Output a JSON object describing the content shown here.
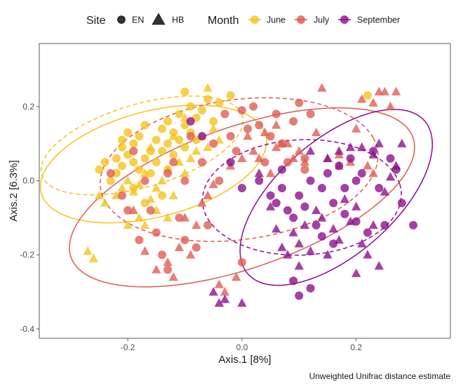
{
  "chart_data": {
    "type": "scatter",
    "title": "",
    "xlabel": "Axis.1   [8%]",
    "ylabel": "Axis.2   [6.3%]",
    "caption": "Unweighted Unifrac distance estimate",
    "xlim": [
      -0.355,
      0.365
    ],
    "ylim": [
      -0.425,
      0.37
    ],
    "x_ticks": [
      -0.2,
      0.0,
      0.2
    ],
    "x_tick_labels": [
      "-0.2",
      "0.0",
      "0.2"
    ],
    "y_ticks": [
      -0.4,
      -0.2,
      0.0,
      0.2
    ],
    "y_tick_labels": [
      "-0.4",
      "-0.2",
      "0.0",
      "0.2"
    ],
    "grid": false,
    "legend_position": "top",
    "legend": {
      "site_title": "Site",
      "site_entries": [
        {
          "label": "EN",
          "shape": "circle"
        },
        {
          "label": "HB",
          "shape": "triangle"
        }
      ],
      "month_title": "Month",
      "month_entries": [
        {
          "label": "June",
          "color": "#F5C21B"
        },
        {
          "label": "July",
          "color": "#E0584F"
        },
        {
          "label": "September",
          "color": "#8C0A8C"
        }
      ]
    },
    "colors": {
      "June": "#F5C21B",
      "July": "#E0584F",
      "September": "#8C0A8C"
    },
    "ellipses": [
      {
        "month": "June",
        "site": "EN",
        "style": "dashed",
        "cx": -0.175,
        "cy": 0.095,
        "rx": 0.195,
        "ry": 0.105,
        "angle_deg": 30
      },
      {
        "month": "June",
        "site": "HB",
        "style": "solid",
        "cx": -0.155,
        "cy": 0.045,
        "rx": 0.215,
        "ry": 0.135,
        "angle_deg": 30
      },
      {
        "month": "July",
        "site": "EN",
        "style": "dashed",
        "cx": -0.005,
        "cy": 0.03,
        "rx": 0.25,
        "ry": 0.185,
        "angle_deg": 20
      },
      {
        "month": "July",
        "site": "HB",
        "style": "solid",
        "cx": 0.0,
        "cy": -0.045,
        "rx": 0.345,
        "ry": 0.175,
        "angle_deg": 34
      },
      {
        "month": "September",
        "site": "EN",
        "style": "dashed",
        "cx": 0.105,
        "cy": -0.045,
        "rx": 0.175,
        "ry": 0.155,
        "angle_deg": 12
      },
      {
        "month": "September",
        "site": "HB",
        "style": "solid",
        "cx": 0.165,
        "cy": -0.045,
        "rx": 0.265,
        "ry": 0.12,
        "angle_deg": 60
      }
    ],
    "series": [
      {
        "month": "June",
        "site": "EN",
        "points": [
          [
            -0.25,
            0.03
          ],
          [
            -0.24,
            0.05
          ],
          [
            -0.22,
            0.06
          ],
          [
            -0.21,
            0.09
          ],
          [
            -0.2,
            0.07
          ],
          [
            -0.19,
            0.1
          ],
          [
            -0.18,
            0.12
          ],
          [
            -0.17,
            0.15
          ],
          [
            -0.16,
            0.08
          ],
          [
            -0.15,
            0.11
          ],
          [
            -0.14,
            0.14
          ],
          [
            -0.13,
            0.16
          ],
          [
            -0.12,
            0.13
          ],
          [
            -0.11,
            0.18
          ],
          [
            -0.1,
            0.15
          ],
          [
            -0.09,
            0.2
          ],
          [
            -0.08,
            0.17
          ],
          [
            -0.07,
            0.19
          ],
          [
            -0.06,
            0.22
          ],
          [
            -0.05,
            0.16
          ],
          [
            -0.04,
            0.21
          ],
          [
            -0.22,
            0.02
          ],
          [
            -0.23,
            0.0
          ],
          [
            -0.21,
            0.04
          ],
          [
            -0.19,
            0.05
          ],
          [
            -0.18,
            0.03
          ],
          [
            -0.17,
            0.06
          ],
          [
            -0.16,
            0.02
          ],
          [
            -0.15,
            0.05
          ],
          [
            -0.14,
            0.08
          ],
          [
            -0.13,
            0.1
          ],
          [
            -0.12,
            0.07
          ],
          [
            -0.11,
            0.11
          ],
          [
            -0.1,
            0.09
          ],
          [
            -0.09,
            0.13
          ],
          [
            -0.08,
            0.11
          ],
          [
            -0.2,
            0.13
          ],
          [
            -0.19,
            -0.02
          ],
          [
            -0.17,
            -0.06
          ],
          [
            -0.14,
            -0.04
          ],
          [
            -0.1,
            0.24
          ],
          [
            -0.02,
            0.23
          ],
          [
            -0.21,
            0.11
          ],
          [
            -0.13,
            0.03
          ],
          [
            0.22,
            0.23
          ]
        ]
      },
      {
        "month": "June",
        "site": "HB",
        "points": [
          [
            -0.27,
            -0.19
          ],
          [
            -0.26,
            -0.21
          ],
          [
            -0.24,
            -0.06
          ],
          [
            -0.22,
            -0.04
          ],
          [
            -0.21,
            -0.02
          ],
          [
            -0.2,
            0.0
          ],
          [
            -0.19,
            -0.03
          ],
          [
            -0.18,
            -0.01
          ],
          [
            -0.17,
            0.02
          ],
          [
            -0.16,
            -0.05
          ],
          [
            -0.15,
            -0.02
          ],
          [
            -0.14,
            0.0
          ],
          [
            -0.13,
            0.03
          ],
          [
            -0.12,
            -0.04
          ],
          [
            -0.11,
            0.05
          ],
          [
            -0.1,
            0.02
          ],
          [
            -0.09,
            0.06
          ],
          [
            -0.08,
            0.08
          ],
          [
            -0.07,
            0.12
          ],
          [
            -0.06,
            0.09
          ],
          [
            -0.05,
            0.14
          ],
          [
            -0.04,
            0.11
          ],
          [
            -0.16,
            0.09
          ],
          [
            -0.12,
            0.12
          ],
          [
            -0.2,
            -0.12
          ],
          [
            -0.18,
            -0.1
          ],
          [
            -0.15,
            -0.08
          ],
          [
            -0.13,
            -0.1
          ],
          [
            -0.1,
            0.17
          ],
          [
            -0.06,
            0.25
          ],
          [
            -0.25,
            -0.04
          ],
          [
            -0.17,
            -0.12
          ]
        ]
      },
      {
        "month": "July",
        "site": "EN",
        "points": [
          [
            -0.23,
            0.02
          ],
          [
            -0.21,
            -0.04
          ],
          [
            -0.19,
            0.08
          ],
          [
            -0.17,
            0.0
          ],
          [
            -0.16,
            -0.08
          ],
          [
            -0.15,
            -0.14
          ],
          [
            -0.14,
            -0.2
          ],
          [
            -0.13,
            -0.24
          ],
          [
            -0.12,
            0.05
          ],
          [
            -0.11,
            -0.1
          ],
          [
            -0.1,
            -0.16
          ],
          [
            -0.09,
            0.12
          ],
          [
            -0.08,
            -0.18
          ],
          [
            -0.07,
            0.05
          ],
          [
            -0.06,
            -0.12
          ],
          [
            -0.05,
            0.1
          ],
          [
            -0.04,
            0.0
          ],
          [
            -0.03,
            0.18
          ],
          [
            -0.02,
            0.12
          ],
          [
            -0.01,
            0.08
          ],
          [
            0.0,
            0.19
          ],
          [
            0.01,
            0.14
          ],
          [
            0.02,
            0.2
          ],
          [
            0.03,
            0.15
          ],
          [
            0.04,
            0.05
          ],
          [
            0.05,
            0.12
          ],
          [
            0.06,
            0.18
          ],
          [
            0.07,
            0.1
          ],
          [
            0.08,
            0.05
          ],
          [
            0.09,
            0.16
          ],
          [
            0.1,
            0.21
          ],
          [
            0.11,
            0.06
          ],
          [
            0.12,
            0.18
          ],
          [
            -0.2,
            -0.08
          ],
          [
            -0.18,
            -0.16
          ],
          [
            -0.1,
            0.0
          ],
          [
            0.0,
            -0.22
          ],
          [
            0.11,
            0.03
          ],
          [
            -0.13,
            0.02
          ]
        ]
      },
      {
        "month": "July",
        "site": "HB",
        "points": [
          [
            -0.19,
            -0.08
          ],
          [
            -0.17,
            -0.19
          ],
          [
            -0.15,
            -0.24
          ],
          [
            -0.13,
            -0.22
          ],
          [
            -0.12,
            -0.26
          ],
          [
            -0.11,
            -0.18
          ],
          [
            -0.1,
            -0.1
          ],
          [
            -0.09,
            -0.2
          ],
          [
            -0.08,
            -0.12
          ],
          [
            -0.07,
            -0.06
          ],
          [
            -0.06,
            -0.04
          ],
          [
            -0.05,
            -0.01
          ],
          [
            -0.04,
            -0.28
          ],
          [
            -0.03,
            -0.3
          ],
          [
            -0.02,
            0.04
          ],
          [
            -0.01,
            -0.26
          ],
          [
            0.0,
            0.06
          ],
          [
            0.01,
            0.12
          ],
          [
            0.02,
            0.08
          ],
          [
            0.03,
            0.06
          ],
          [
            0.04,
            0.13
          ],
          [
            0.05,
            0.02
          ],
          [
            0.06,
            0.09
          ],
          [
            0.07,
            0.1
          ],
          [
            0.08,
            0.1
          ],
          [
            0.09,
            0.06
          ],
          [
            0.1,
            0.08
          ],
          [
            0.13,
            0.13
          ],
          [
            0.15,
            0.06
          ],
          [
            0.17,
            0.04
          ],
          [
            0.19,
            0.05
          ],
          [
            0.21,
            0.22
          ],
          [
            0.22,
            0.04
          ],
          [
            0.23,
            0.21
          ],
          [
            0.24,
            0.24
          ],
          [
            0.25,
            0.24
          ],
          [
            0.26,
            0.2
          ],
          [
            0.27,
            0.24
          ],
          [
            0.14,
            0.25
          ],
          [
            0.17,
            0.07
          ],
          [
            0.2,
            0.14
          ],
          [
            0.23,
            0.02
          ],
          [
            0.11,
            0.05
          ],
          [
            0.06,
            0.15
          ]
        ]
      },
      {
        "month": "September",
        "site": "EN",
        "points": [
          [
            -0.09,
            0.16
          ],
          [
            -0.07,
            0.12
          ],
          [
            -0.02,
            0.05
          ],
          [
            0.0,
            -0.02
          ],
          [
            0.03,
            0.0
          ],
          [
            0.05,
            -0.04
          ],
          [
            0.06,
            -0.06
          ],
          [
            0.07,
            -0.02
          ],
          [
            0.08,
            -0.08
          ],
          [
            0.09,
            -0.1
          ],
          [
            0.1,
            -0.04
          ],
          [
            0.11,
            -0.07
          ],
          [
            0.12,
            0.0
          ],
          [
            0.13,
            -0.12
          ],
          [
            0.14,
            -0.02
          ],
          [
            0.15,
            0.02
          ],
          [
            0.16,
            -0.06
          ],
          [
            0.17,
            0.04
          ],
          [
            0.18,
            -0.09
          ],
          [
            0.19,
            0.06
          ],
          [
            0.2,
            -0.11
          ],
          [
            0.21,
            0.02
          ],
          [
            0.22,
            -0.14
          ],
          [
            0.23,
            0.08
          ],
          [
            0.24,
            -0.02
          ],
          [
            0.25,
            -0.12
          ],
          [
            0.26,
            0.06
          ],
          [
            0.27,
            0.03
          ],
          [
            0.28,
            -0.06
          ],
          [
            0.3,
            -0.12
          ],
          [
            0.12,
            -0.29
          ],
          [
            0.1,
            -0.31
          ],
          [
            0.09,
            -0.27
          ],
          [
            0.14,
            -0.15
          ],
          [
            0.16,
            -0.17
          ],
          [
            0.18,
            -0.02
          ],
          [
            0.2,
            0.0
          ],
          [
            0.07,
            0.03
          ]
        ]
      },
      {
        "month": "September",
        "site": "HB",
        "points": [
          [
            -0.05,
            -0.3
          ],
          [
            -0.04,
            -0.33
          ],
          [
            -0.03,
            -0.32
          ],
          [
            0.0,
            -0.33
          ],
          [
            0.03,
            0.02
          ],
          [
            0.05,
            -0.07
          ],
          [
            0.06,
            -0.13
          ],
          [
            0.07,
            -0.18
          ],
          [
            0.08,
            -0.2
          ],
          [
            0.09,
            -0.14
          ],
          [
            0.1,
            -0.17
          ],
          [
            0.11,
            -0.12
          ],
          [
            0.12,
            -0.19
          ],
          [
            0.13,
            -0.08
          ],
          [
            0.14,
            -0.1
          ],
          [
            0.15,
            -0.2
          ],
          [
            0.16,
            -0.13
          ],
          [
            0.17,
            -0.16
          ],
          [
            0.18,
            -0.05
          ],
          [
            0.19,
            -0.11
          ],
          [
            0.2,
            -0.07
          ],
          [
            0.21,
            -0.17
          ],
          [
            0.22,
            -0.2
          ],
          [
            0.23,
            -0.12
          ],
          [
            0.24,
            -0.23
          ],
          [
            0.25,
            -0.03
          ],
          [
            0.26,
            0.01
          ],
          [
            0.27,
            0.04
          ],
          [
            0.28,
            0.1
          ],
          [
            0.15,
            0.06
          ],
          [
            0.17,
            0.08
          ],
          [
            0.19,
            0.09
          ],
          [
            0.21,
            0.09
          ],
          [
            0.23,
            0.07
          ],
          [
            0.24,
            0.1
          ],
          [
            0.12,
            0.08
          ],
          [
            0.2,
            -0.25
          ],
          [
            0.1,
            -0.23
          ]
        ]
      }
    ]
  }
}
